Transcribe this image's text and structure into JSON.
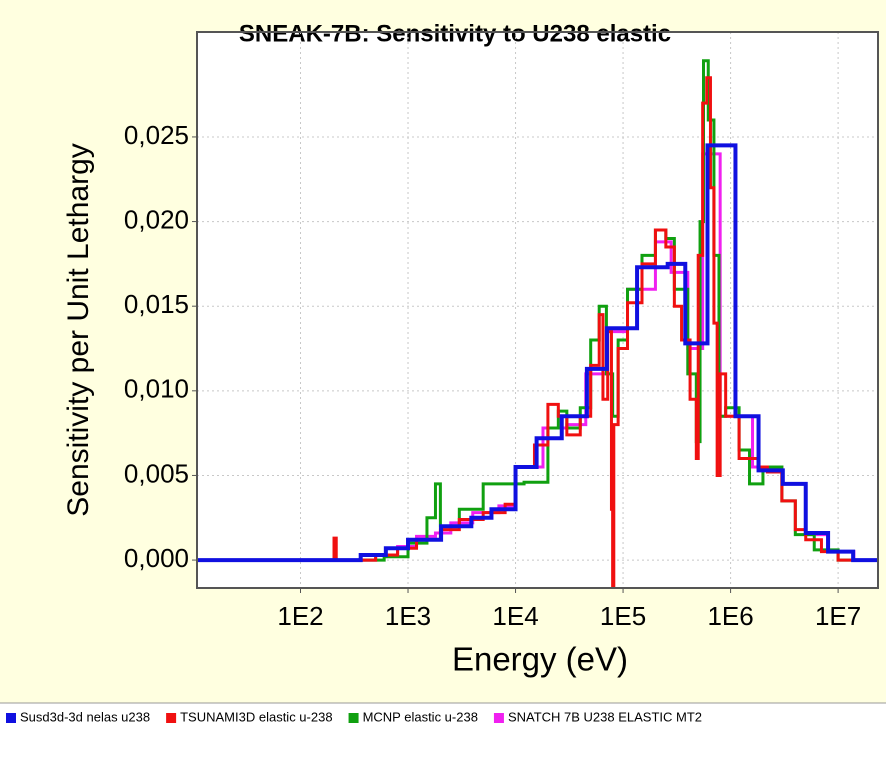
{
  "chart_data": {
    "type": "line",
    "drawstyle": "steps-post",
    "title": "SNEAK-7B: Sensitivity to U238 elastic",
    "xlabel": "Energy (eV)",
    "ylabel": "Sensitivity per Unit Lethargy",
    "xscale": "log",
    "grid": true,
    "legend": "bottom",
    "xlim": [
      10.9,
      23500000
    ],
    "ylim": [
      -0.00165,
      0.0312
    ],
    "xticks": [
      {
        "value": 100,
        "label": "1E2"
      },
      {
        "value": 1000,
        "label": "1E3"
      },
      {
        "value": 10000,
        "label": "1E4"
      },
      {
        "value": 100000,
        "label": "1E5"
      },
      {
        "value": 1000000,
        "label": "1E6"
      },
      {
        "value": 10000000,
        "label": "1E7"
      }
    ],
    "yticks": [
      {
        "value": 0,
        "label": "0,000"
      },
      {
        "value": 0.005,
        "label": "0,005"
      },
      {
        "value": 0.01,
        "label": "0,010"
      },
      {
        "value": 0.015,
        "label": "0,015"
      },
      {
        "value": 0.02,
        "label": "0,020"
      },
      {
        "value": 0.025,
        "label": "0,025"
      }
    ],
    "series": [
      {
        "name": "Susd3d-3d nelas u238",
        "color": "#1010e0",
        "width": 4,
        "x": [
          11,
          363,
          622,
          1000,
          2030,
          3880,
          5970,
          10000,
          15700,
          26900,
          46100,
          70800,
          135000,
          260000,
          379000,
          610000,
          1110000,
          1820000,
          3060000,
          5000000,
          8070000,
          13800000,
          23500000
        ],
        "values": [
          0,
          0.0003,
          0.0007,
          0.0012,
          0.002,
          0.0025,
          0.003,
          0.0055,
          0.0072,
          0.0085,
          0.0113,
          0.0137,
          0.0173,
          0.0175,
          0.0128,
          0.0245,
          0.0085,
          0.0053,
          0.0045,
          0.0016,
          0.0005,
          0,
          0
        ]
      },
      {
        "name": "TSUNAMI3D elastic u-238",
        "color": "#f01010",
        "width": 3,
        "x": [
          11,
          200,
          205,
          215,
          500,
          800,
          1200,
          2000,
          3000,
          5000,
          8000,
          10000,
          15000,
          20000,
          25000,
          30000,
          40000,
          50000,
          60000,
          65000,
          72000,
          78000,
          80000,
          82000,
          90000,
          110000,
          150000,
          200000,
          250000,
          300000,
          350000,
          420000,
          480000,
          500000,
          550000,
          600000,
          650000,
          700000,
          750000,
          800000,
          900000,
          1200000,
          1800000,
          2200000,
          3000000,
          4000000,
          5000000,
          7000000,
          10000000,
          23500000
        ],
        "values": [
          0,
          0,
          0.0013,
          0,
          0.0003,
          0.0007,
          0.0012,
          0.0018,
          0.0024,
          0.0028,
          0.0033,
          0.0055,
          0.0068,
          0.0092,
          0.0085,
          0.0074,
          0.0085,
          0.0115,
          0.0145,
          0.0095,
          0.0135,
          0.003,
          -0.0025,
          0.008,
          0.0125,
          0.0152,
          0.0175,
          0.0195,
          0.0185,
          0.015,
          0.013,
          0.0095,
          0.006,
          0.018,
          0.027,
          0.0285,
          0.022,
          0.014,
          0.005,
          0.011,
          0.0085,
          0.006,
          0.0055,
          0.0052,
          0.0035,
          0.0018,
          0.0012,
          0.0005,
          0,
          0
        ]
      },
      {
        "name": "MCNP elastic u-238",
        "color": "#10a010",
        "width": 3,
        "x": [
          11,
          300,
          600,
          1000,
          1500,
          1800,
          2000,
          3000,
          5000,
          10000,
          12000,
          20000,
          25000,
          30000,
          40000,
          50000,
          60000,
          70000,
          80000,
          90000,
          110000,
          150000,
          200000,
          250000,
          300000,
          400000,
          480000,
          520000,
          560000,
          620000,
          700000,
          780000,
          900000,
          1200000,
          1500000,
          2000000,
          3000000,
          4000000,
          6000000,
          10000000,
          23500000
        ],
        "values": [
          0,
          0,
          0.0002,
          0.001,
          0.0025,
          0.0045,
          0.002,
          0.003,
          0.0045,
          0.0045,
          0.0046,
          0.0078,
          0.0088,
          0.0078,
          0.009,
          0.013,
          0.015,
          0.011,
          0.0085,
          0.013,
          0.016,
          0.018,
          0.0195,
          0.019,
          0.016,
          0.011,
          0.007,
          0.02,
          0.0295,
          0.026,
          0.018,
          0.0085,
          0.009,
          0.0065,
          0.0045,
          0.0055,
          0.0035,
          0.0015,
          0.0006,
          0,
          0
        ]
      },
      {
        "name": "SNATCH 7B U238 ELASTIC MT2",
        "color": "#f020f0",
        "width": 3,
        "x": [
          11,
          500,
          800,
          1200,
          1800,
          2500,
          4000,
          7000,
          10000,
          18000,
          30000,
          45000,
          70000,
          110000,
          200000,
          280000,
          400000,
          550000,
          800000,
          1600000,
          3000000,
          5000000,
          8000000,
          14000000,
          23500000
        ],
        "values": [
          0,
          0.0003,
          0.0008,
          0.0014,
          0.0016,
          0.0022,
          0.0028,
          0.0032,
          0.0055,
          0.0078,
          0.008,
          0.011,
          0.0135,
          0.016,
          0.0188,
          0.017,
          0.0125,
          0.024,
          0.0085,
          0.0055,
          0.0045,
          0.0015,
          0.0005,
          0,
          0
        ]
      }
    ]
  }
}
